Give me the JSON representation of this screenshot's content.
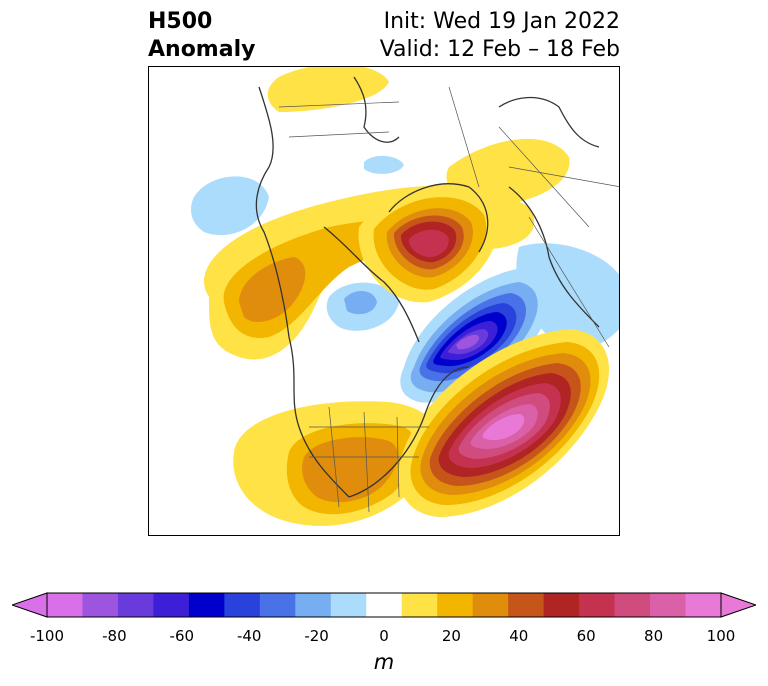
{
  "title": {
    "left_line1": "H500",
    "left_line2": "Anomaly",
    "right_line1": "Init: Wed 19 Jan 2022",
    "right_line2": "Valid: 12 Feb – 18 Feb"
  },
  "colorbar": {
    "unit": "m",
    "ticks": [
      "-100",
      "-80",
      "-60",
      "-40",
      "-20",
      "0",
      "20",
      "40",
      "60",
      "80",
      "100"
    ],
    "levels": [
      -100,
      -90,
      -80,
      -70,
      -60,
      -50,
      -40,
      -30,
      -20,
      -10,
      10,
      20,
      30,
      40,
      50,
      60,
      70,
      80,
      90,
      100
    ],
    "colors": [
      "#d970e9",
      "#9d55e0",
      "#6a3bdc",
      "#3c1fd6",
      "#0000cd",
      "#2942dc",
      "#4a72e8",
      "#77aef2",
      "#acdcfb",
      "#ffffff",
      "#ffe245",
      "#f2b500",
      "#e08c0c",
      "#c6551a",
      "#b12424",
      "#c43250",
      "#d14c7e",
      "#da60a8",
      "#e879d6"
    ],
    "extend_low_color": "#d970e9",
    "extend_high_color": "#e879d6"
  },
  "map": {
    "projection": "polar stereographic (North America)",
    "anomaly_features": [
      {
        "name": "greenland-ridge",
        "sign": "positive",
        "peak": 70
      },
      {
        "name": "eastern-canada-trough",
        "sign": "negative",
        "peak": -90
      },
      {
        "name": "north-atlantic-ridge",
        "sign": "positive",
        "peak": 90
      },
      {
        "name": "conus-ridge",
        "sign": "positive",
        "peak": 40
      },
      {
        "name": "bering-ridge",
        "sign": "positive",
        "peak": 40
      },
      {
        "name": "northeast-pacific-low",
        "sign": "negative",
        "peak": -20
      },
      {
        "name": "arctic-low",
        "sign": "negative",
        "peak": -30
      },
      {
        "name": "europe-low",
        "sign": "negative",
        "peak": -20
      }
    ]
  }
}
